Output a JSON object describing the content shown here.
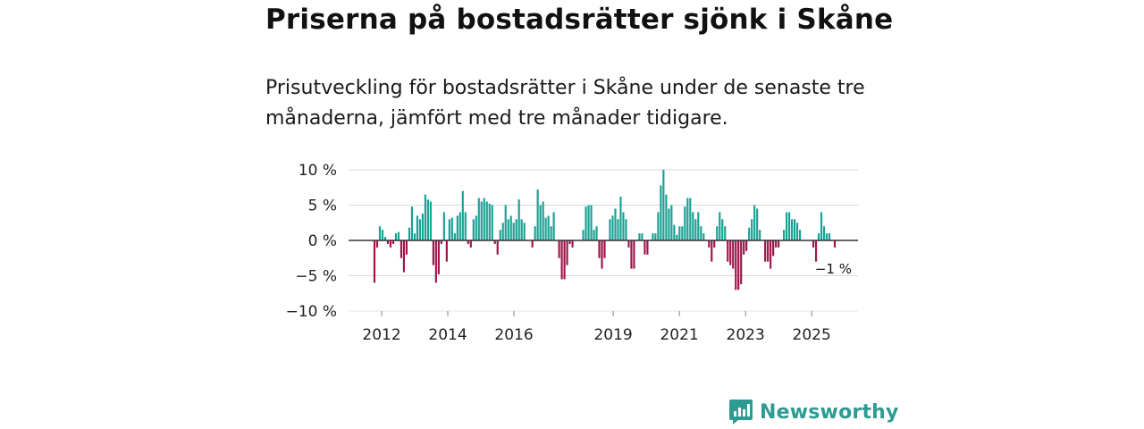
{
  "title": "Priserna på bostadsrätter sjönk i Skåne",
  "subtitle": "Prisutveckling för bostadsrätter i Skåne under de senaste tre månaderna, jämfört med tre månader tidigare.",
  "brand": {
    "name": "Newsworthy",
    "color": "#2e9b92"
  },
  "colors": {
    "positive": "#14a394",
    "negative": "#a3124a",
    "grid": "#d9d9d9",
    "zero": "#333333"
  },
  "chart_data": {
    "type": "bar",
    "title": "Priserna på bostadsrätter sjönk i Skåne",
    "xlabel": "",
    "ylabel": "",
    "x_start": 2011.0,
    "x_end": 2026.4,
    "ylim": [
      -10,
      10
    ],
    "y_ticks": [
      10,
      5,
      0,
      -5,
      -10
    ],
    "y_tick_labels": [
      "10 %",
      "5 %",
      "0 %",
      "−5 %",
      "−10 %"
    ],
    "x_ticks": [
      2012,
      2014,
      2016,
      2019,
      2021,
      2023,
      2025
    ],
    "x_tick_labels": [
      "2012",
      "2014",
      "2016",
      "2019",
      "2021",
      "2023",
      "2025"
    ],
    "annotation": {
      "text": "−1 %",
      "value": -1
    },
    "values": [
      -6,
      -1,
      2,
      1.5,
      0.5,
      -0.5,
      -1,
      -0.5,
      1,
      1.2,
      -2.5,
      -4.5,
      -2,
      1.8,
      4.8,
      1,
      3.5,
      3,
      3.8,
      6.5,
      5.8,
      5.5,
      -3.5,
      -6,
      -4.8,
      -0.5,
      4,
      -3,
      3,
      3.2,
      1,
      3.5,
      4,
      7,
      4,
      -0.5,
      -1,
      3,
      3.5,
      6,
      5.5,
      6,
      5.5,
      5.2,
      5,
      -0.5,
      -2,
      1.5,
      2.5,
      5,
      3,
      3.5,
      2.5,
      3,
      5.8,
      3,
      2.5,
      0,
      0,
      -1,
      2,
      7.2,
      5,
      5.5,
      3.2,
      3.5,
      2,
      4,
      0,
      -2.5,
      -5.5,
      -5.5,
      -3.5,
      -0.5,
      -1,
      0,
      0,
      0,
      1.5,
      4.8,
      5,
      5,
      1.5,
      2,
      -2.5,
      -4,
      -2.5,
      0,
      3,
      3.5,
      4.5,
      3,
      6.2,
      4,
      3,
      -1,
      -4,
      -4,
      0,
      1,
      1,
      -2,
      -2,
      0,
      1,
      1,
      4,
      7.8,
      10,
      6.5,
      4.5,
      5,
      2.2,
      0.8,
      2,
      2,
      4.8,
      6,
      6,
      4,
      3,
      4,
      2,
      1,
      0,
      -1,
      -3,
      -1,
      2,
      4,
      3,
      2,
      -3,
      -3.5,
      -4,
      -7,
      -7,
      -6.2,
      -2,
      -1.5,
      1.8,
      3,
      5,
      4.5,
      1.5,
      0,
      -3,
      -3,
      -4,
      -2.2,
      -1,
      -1,
      0,
      1.5,
      4,
      4,
      3,
      3,
      2.5,
      1.5,
      0,
      0,
      0,
      0,
      -1,
      -3,
      1,
      4,
      2,
      1,
      1,
      0,
      -1
    ]
  }
}
